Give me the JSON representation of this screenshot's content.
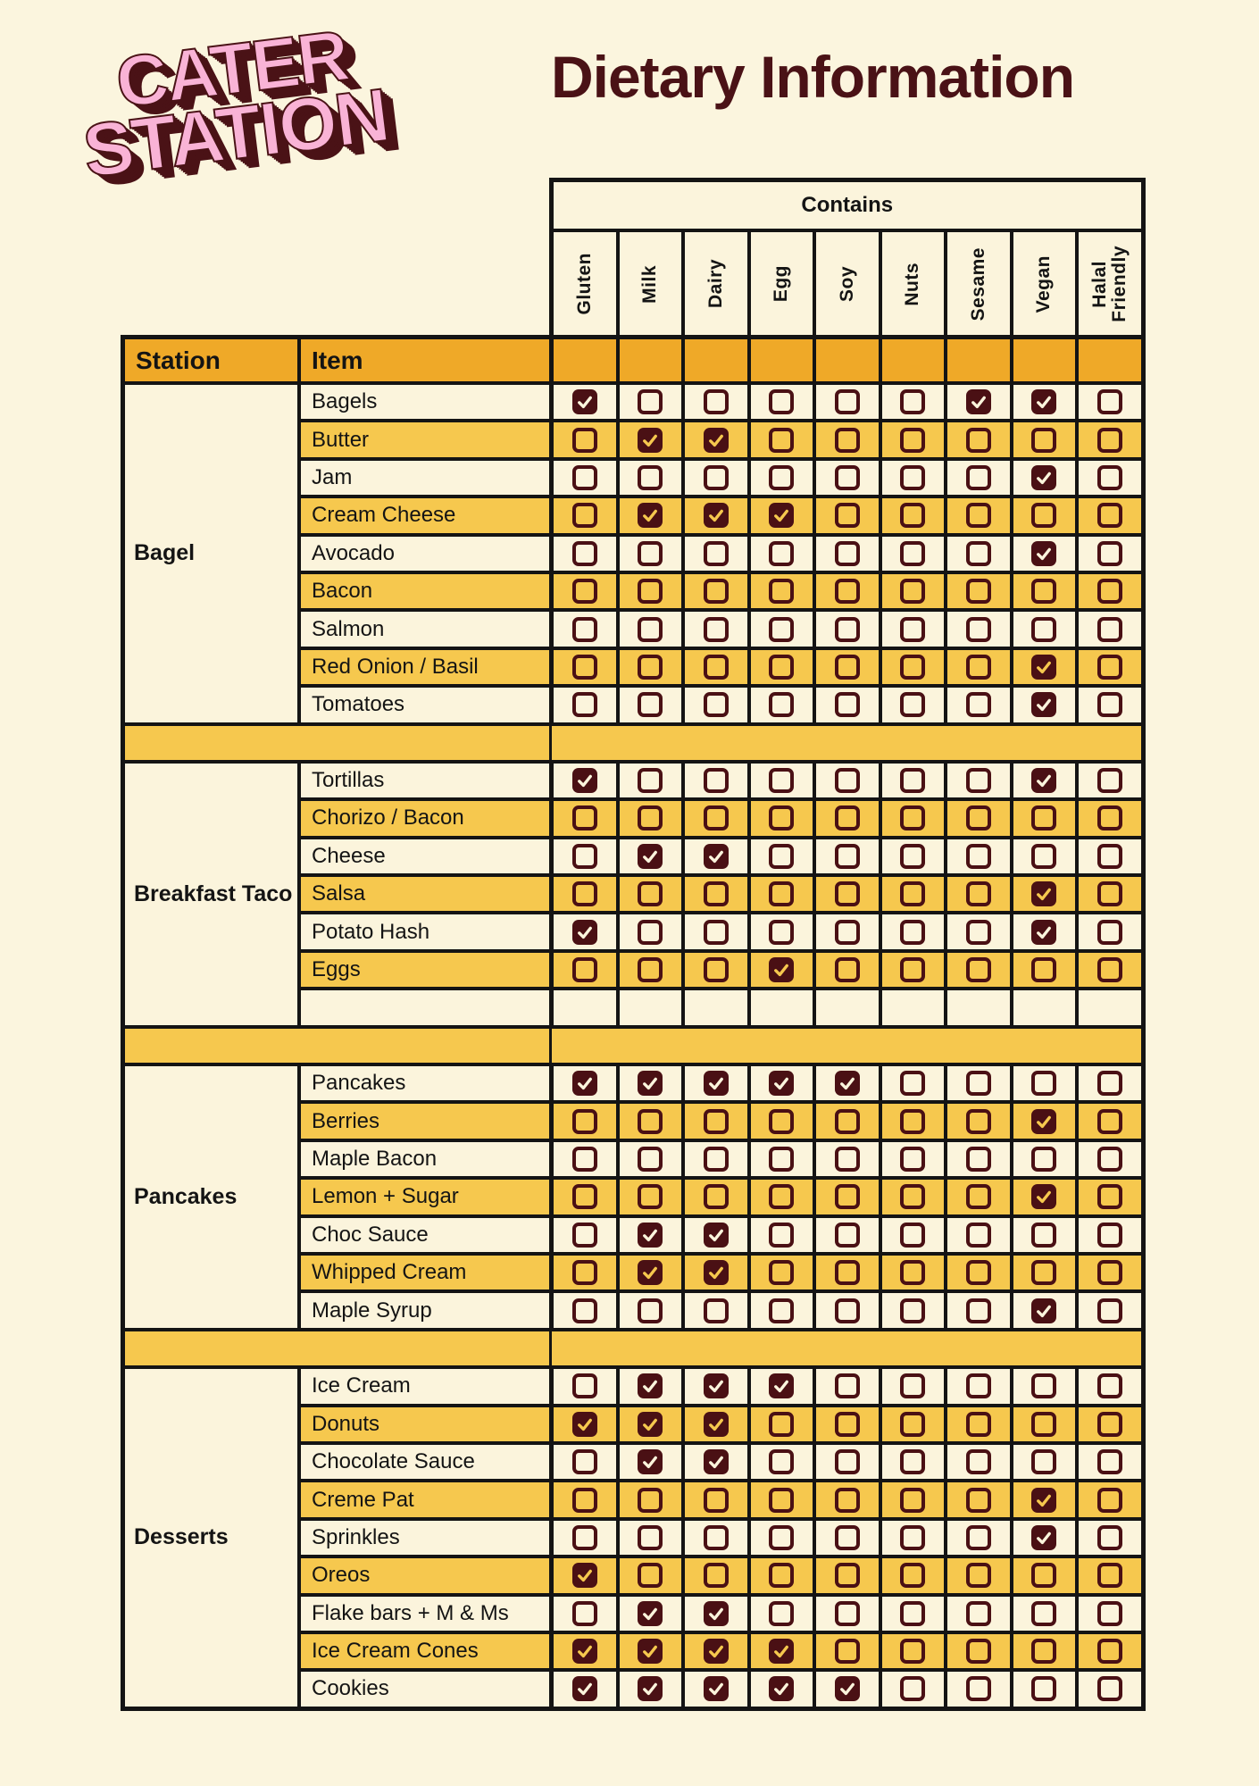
{
  "logo": {
    "line1": "CATER",
    "line2": "STATION"
  },
  "title": "Dietary Information",
  "colors": {
    "background_cream": "#FBF5DE",
    "cell_cream": "#FBF4DC",
    "row_yellow": "#F6C84E",
    "header_orange": "#EFA928",
    "maroon": "#4A1014",
    "logo_pink": "#F9B3D6",
    "line_black": "#141414"
  },
  "table": {
    "contains_label": "Contains",
    "station_header": "Station",
    "item_header": "Item",
    "columns": [
      "Gluten",
      "Milk",
      "Dairy",
      "Egg",
      "Soy",
      "Nuts",
      "Sesame",
      "Vegan",
      "Halal Friendly"
    ],
    "sections": [
      {
        "station": "Bagel",
        "rows": [
          {
            "item": "Bagels",
            "shade": "cream",
            "checks": [
              1,
              0,
              0,
              0,
              0,
              0,
              1,
              1,
              0
            ]
          },
          {
            "item": "Butter",
            "shade": "yellow",
            "checks": [
              0,
              1,
              1,
              0,
              0,
              0,
              0,
              0,
              0
            ]
          },
          {
            "item": "Jam",
            "shade": "cream",
            "checks": [
              0,
              0,
              0,
              0,
              0,
              0,
              0,
              1,
              0
            ]
          },
          {
            "item": "Cream Cheese",
            "shade": "yellow",
            "checks": [
              0,
              1,
              1,
              1,
              0,
              0,
              0,
              0,
              0
            ]
          },
          {
            "item": "Avocado",
            "shade": "cream",
            "checks": [
              0,
              0,
              0,
              0,
              0,
              0,
              0,
              1,
              0
            ]
          },
          {
            "item": "Bacon",
            "shade": "yellow",
            "checks": [
              0,
              0,
              0,
              0,
              0,
              0,
              0,
              0,
              0
            ]
          },
          {
            "item": "Salmon",
            "shade": "cream",
            "checks": [
              0,
              0,
              0,
              0,
              0,
              0,
              0,
              0,
              0
            ]
          },
          {
            "item": "Red Onion / Basil",
            "shade": "yellow",
            "checks": [
              0,
              0,
              0,
              0,
              0,
              0,
              0,
              1,
              0
            ]
          },
          {
            "item": "Tomatoes",
            "shade": "cream",
            "checks": [
              0,
              0,
              0,
              0,
              0,
              0,
              0,
              1,
              0
            ]
          }
        ]
      },
      {
        "station": "Breakfast Taco",
        "rows": [
          {
            "item": "Tortillas",
            "shade": "cream",
            "checks": [
              1,
              0,
              0,
              0,
              0,
              0,
              0,
              1,
              0
            ]
          },
          {
            "item": "Chorizo / Bacon",
            "shade": "yellow",
            "checks": [
              0,
              0,
              0,
              0,
              0,
              0,
              0,
              0,
              0
            ]
          },
          {
            "item": "Cheese",
            "shade": "cream",
            "checks": [
              0,
              1,
              1,
              0,
              0,
              0,
              0,
              0,
              0
            ]
          },
          {
            "item": "Salsa",
            "shade": "yellow",
            "checks": [
              0,
              0,
              0,
              0,
              0,
              0,
              0,
              1,
              0
            ]
          },
          {
            "item": "Potato Hash",
            "shade": "cream",
            "checks": [
              1,
              0,
              0,
              0,
              0,
              0,
              0,
              1,
              0
            ]
          },
          {
            "item": "Eggs",
            "shade": "yellow",
            "checks": [
              0,
              0,
              0,
              1,
              0,
              0,
              0,
              0,
              0
            ]
          },
          {
            "item": "",
            "shade": "cream",
            "checks": null
          }
        ]
      },
      {
        "station": "Pancakes",
        "rows": [
          {
            "item": "Pancakes",
            "shade": "cream",
            "checks": [
              1,
              1,
              1,
              1,
              1,
              0,
              0,
              0,
              0
            ]
          },
          {
            "item": "Berries",
            "shade": "yellow",
            "checks": [
              0,
              0,
              0,
              0,
              0,
              0,
              0,
              1,
              0
            ]
          },
          {
            "item": "Maple Bacon",
            "shade": "cream",
            "checks": [
              0,
              0,
              0,
              0,
              0,
              0,
              0,
              0,
              0
            ]
          },
          {
            "item": "Lemon + Sugar",
            "shade": "yellow",
            "checks": [
              0,
              0,
              0,
              0,
              0,
              0,
              0,
              1,
              0
            ]
          },
          {
            "item": "Choc Sauce",
            "shade": "cream",
            "checks": [
              0,
              1,
              1,
              0,
              0,
              0,
              0,
              0,
              0
            ]
          },
          {
            "item": "Whipped Cream",
            "shade": "yellow",
            "checks": [
              0,
              1,
              1,
              0,
              0,
              0,
              0,
              0,
              0
            ]
          },
          {
            "item": "Maple Syrup",
            "shade": "cream",
            "checks": [
              0,
              0,
              0,
              0,
              0,
              0,
              0,
              1,
              0
            ]
          }
        ]
      },
      {
        "station": "Desserts",
        "rows": [
          {
            "item": "Ice Cream",
            "shade": "cream",
            "checks": [
              0,
              1,
              1,
              1,
              0,
              0,
              0,
              0,
              0
            ]
          },
          {
            "item": "Donuts",
            "shade": "yellow",
            "checks": [
              1,
              1,
              1,
              0,
              0,
              0,
              0,
              0,
              0
            ]
          },
          {
            "item": "Chocolate Sauce",
            "shade": "cream",
            "checks": [
              0,
              1,
              1,
              0,
              0,
              0,
              0,
              0,
              0
            ]
          },
          {
            "item": "Creme Pat",
            "shade": "yellow",
            "checks": [
              0,
              0,
              0,
              0,
              0,
              0,
              0,
              1,
              0
            ]
          },
          {
            "item": "Sprinkles",
            "shade": "cream",
            "checks": [
              0,
              0,
              0,
              0,
              0,
              0,
              0,
              1,
              0
            ]
          },
          {
            "item": "Oreos",
            "shade": "yellow",
            "checks": [
              1,
              0,
              0,
              0,
              0,
              0,
              0,
              0,
              0
            ]
          },
          {
            "item": "Flake bars + M & Ms",
            "shade": "cream",
            "checks": [
              0,
              1,
              1,
              0,
              0,
              0,
              0,
              0,
              0
            ]
          },
          {
            "item": "Ice Cream Cones",
            "shade": "yellow",
            "checks": [
              1,
              1,
              1,
              1,
              0,
              0,
              0,
              0,
              0
            ]
          },
          {
            "item": "Cookies",
            "shade": "cream",
            "checks": [
              1,
              1,
              1,
              1,
              1,
              0,
              0,
              0,
              0
            ]
          }
        ]
      }
    ]
  }
}
